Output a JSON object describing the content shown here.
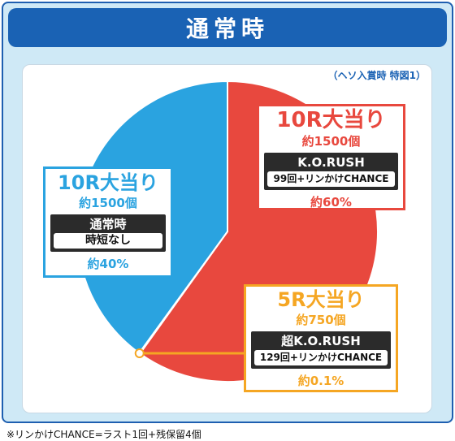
{
  "header": {
    "title": "通常時"
  },
  "note": "（ヘソ入賞時 特図1）",
  "footnote": "※リンかけCHANCE=ラスト1回+残保留4個",
  "colors": {
    "red": "#e8483e",
    "blue": "#2aa3e0",
    "orange": "#f5a623",
    "navy": "#1a62b4"
  },
  "chart_data": {
    "type": "pie",
    "slices": [
      {
        "label": "10R大当り",
        "value": 59.9,
        "printed_percent": "約60%",
        "color": "#e8483e"
      },
      {
        "label": "5R大当り",
        "value": 0.1,
        "printed_percent": "約0.1%",
        "color": "#f5a623"
      },
      {
        "label": "10R大当り",
        "value": 40,
        "printed_percent": "約40%",
        "color": "#2aa3e0"
      }
    ]
  },
  "callouts": {
    "red": {
      "title": "10R大当り",
      "payout": "約1500個",
      "mode": "K.O.RUSH",
      "detail": "99回+リンかけCHANCE",
      "percent": "約60%"
    },
    "blue": {
      "title": "10R大当り",
      "payout": "約1500個",
      "mode": "通常時",
      "detail": "時短なし",
      "percent": "約40%"
    },
    "orange": {
      "title": "5R大当り",
      "payout": "約750個",
      "mode": "超K.O.RUSH",
      "detail": "129回+リンかけCHANCE",
      "percent": "約0.1%"
    }
  }
}
